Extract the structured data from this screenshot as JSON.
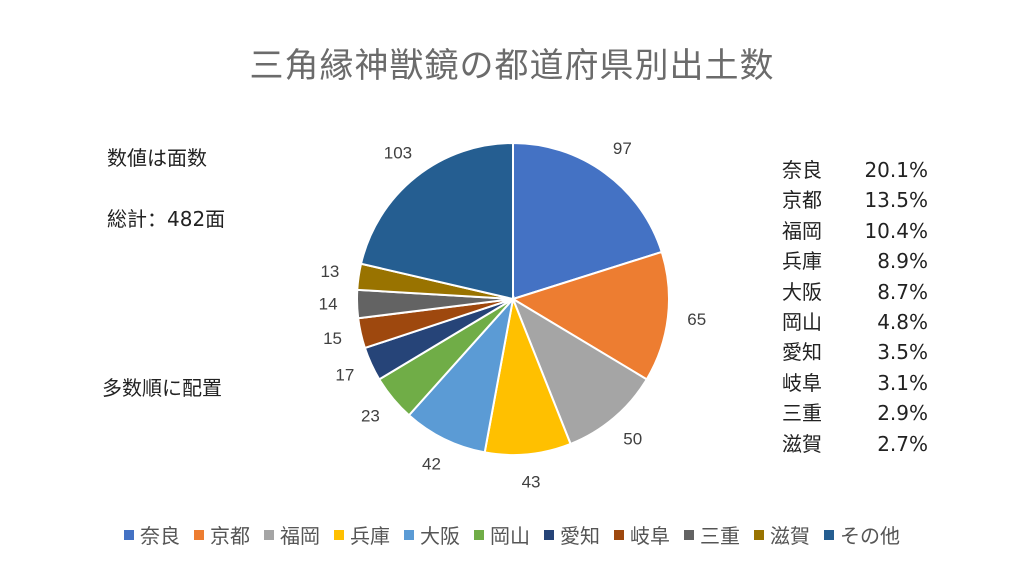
{
  "chart_data": {
    "type": "pie",
    "title": "三角縁神獣鏡の都道府県別出土数",
    "categories": [
      "奈良",
      "京都",
      "福岡",
      "兵庫",
      "大阪",
      "岡山",
      "愛知",
      "岐阜",
      "三重",
      "滋賀",
      "その他"
    ],
    "values": [
      97,
      65,
      50,
      43,
      42,
      23,
      17,
      15,
      14,
      13,
      103
    ],
    "colors": [
      "#4472c4",
      "#ed7d31",
      "#a5a5a5",
      "#ffc000",
      "#5b9bd5",
      "#70ad47",
      "#264478",
      "#9e480e",
      "#636363",
      "#997300",
      "#255e91"
    ],
    "legend_position": "bottom"
  },
  "notes": {
    "faces": "数値は面数",
    "total": "総計：482面",
    "order": "多数順に配置"
  },
  "percent_table": [
    {
      "name": "奈良",
      "value": "20.1%"
    },
    {
      "name": "京都",
      "value": "13.5%"
    },
    {
      "name": "福岡",
      "value": "10.4%"
    },
    {
      "name": "兵庫",
      "value": "8.9%"
    },
    {
      "name": "大阪",
      "value": "8.7%"
    },
    {
      "name": "岡山",
      "value": "4.8%"
    },
    {
      "name": "愛知",
      "value": "3.5%"
    },
    {
      "name": "岐阜",
      "value": "3.1%"
    },
    {
      "name": "三重",
      "value": "2.9%"
    },
    {
      "name": "滋賀",
      "value": "2.7%"
    }
  ]
}
